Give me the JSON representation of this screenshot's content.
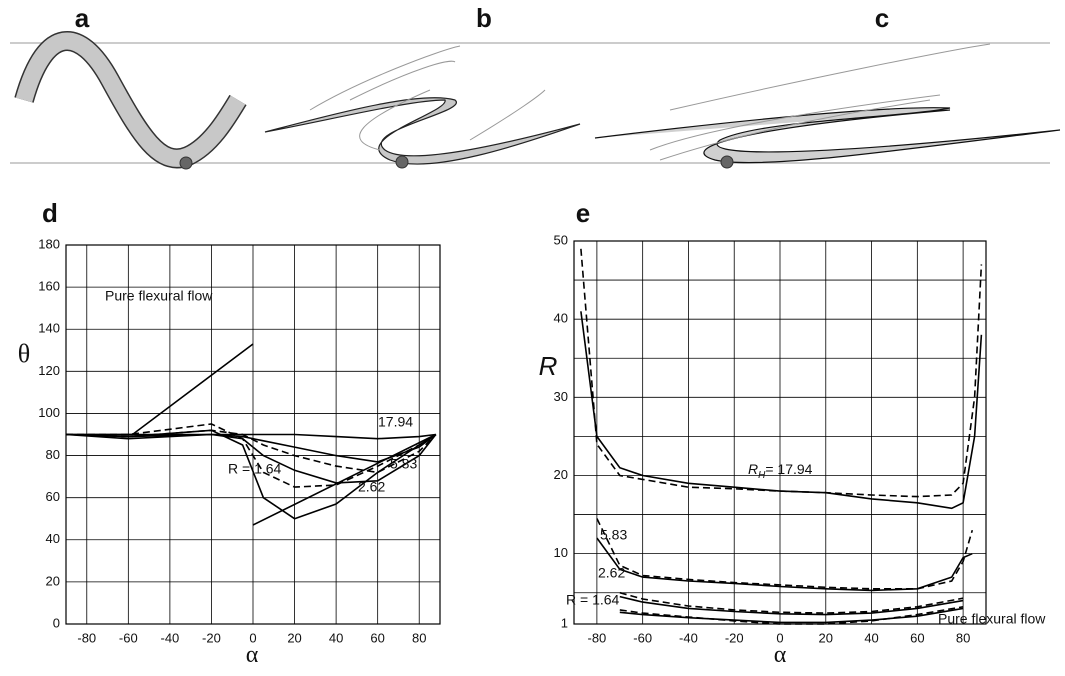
{
  "panels": [
    "a",
    "b",
    "c"
  ],
  "chart_data": [
    {
      "type": "line",
      "panel_label": "d",
      "xlabel": "α",
      "ylabel": "θ",
      "xlim": [
        -90,
        90
      ],
      "xticks": [
        -80,
        -60,
        -40,
        -20,
        0,
        20,
        40,
        60,
        80
      ],
      "ylim": [
        0,
        180
      ],
      "yticks": [
        0,
        20,
        40,
        60,
        80,
        100,
        120,
        140,
        160,
        180
      ],
      "grid": true,
      "annotations": [
        "Pure flexural flow",
        "R = 1.64",
        "2.62",
        "5.83",
        "17.94"
      ],
      "series": [
        {
          "color": "#000000",
          "dash": "solid",
          "x": [
            -90,
            -58,
            0,
            0,
            0,
            88
          ],
          "values": [
            90,
            90,
            133,
            null,
            47,
            90
          ]
        },
        {
          "color": "#000000",
          "dash": "solid",
          "x": [
            -90,
            -60,
            -20,
            -5,
            5,
            20,
            40,
            60,
            80,
            88
          ],
          "values": [
            90,
            89,
            92,
            85,
            60,
            50,
            57,
            72,
            85,
            90
          ]
        },
        {
          "color": "#000000",
          "dash": "dashed",
          "x": [
            -90,
            -60,
            -20,
            -5,
            5,
            20,
            40,
            60,
            80,
            88
          ],
          "values": [
            90,
            90,
            95,
            88,
            72,
            65,
            66,
            75,
            85,
            90
          ]
        },
        {
          "color": "#000000",
          "dash": "solid",
          "x": [
            -90,
            -60,
            -20,
            -5,
            5,
            20,
            40,
            60,
            80,
            88
          ],
          "values": [
            90,
            88,
            90,
            88,
            80,
            73,
            67,
            68,
            80,
            90
          ]
        },
        {
          "color": "#000000",
          "dash": "dashed",
          "x": [
            -90,
            -60,
            -20,
            -5,
            5,
            20,
            40,
            60,
            80,
            88
          ],
          "values": [
            90,
            89,
            92,
            90,
            85,
            80,
            75,
            72,
            82,
            90
          ]
        },
        {
          "color": "#000000",
          "dash": "solid",
          "x": [
            -90,
            -60,
            -20,
            -5,
            5,
            20,
            40,
            60,
            80,
            88
          ],
          "values": [
            90,
            89,
            90,
            89,
            87,
            84,
            80,
            77,
            84,
            90
          ]
        },
        {
          "color": "#000000",
          "dash": "solid",
          "x": [
            -90,
            -60,
            -20,
            -5,
            5,
            20,
            40,
            60,
            80,
            88
          ],
          "values": [
            90,
            90,
            90,
            90,
            90,
            90,
            89,
            88,
            89,
            90
          ]
        }
      ]
    },
    {
      "type": "line",
      "panel_label": "e",
      "xlabel": "α",
      "ylabel": "R",
      "xlim": [
        -90,
        90
      ],
      "xticks": [
        -80,
        -60,
        -40,
        -20,
        0,
        20,
        40,
        60,
        80
      ],
      "ylim": [
        1,
        50
      ],
      "yticks": [
        1,
        10,
        20,
        30,
        40,
        50
      ],
      "minor_yticks": [
        5,
        15,
        25,
        35,
        45
      ],
      "grid": true,
      "annotations": [
        "5.83",
        "2.62",
        "R = 1.64",
        "Pure flexural flow"
      ],
      "rh_label": {
        "symbol": "R",
        "subscript": "H",
        "text": "= 17.94"
      },
      "series": [
        {
          "color": "#000000",
          "dash": "solid",
          "x": [
            -87,
            -80,
            -70,
            -60,
            -40,
            -20,
            0,
            20,
            40,
            60,
            75,
            80,
            85,
            88
          ],
          "values": [
            41,
            25,
            21,
            20,
            19,
            18.5,
            18,
            17.8,
            17,
            16.5,
            15.8,
            16.5,
            25,
            38
          ]
        },
        {
          "color": "#000000",
          "dash": "dashed",
          "x": [
            -87,
            -80,
            -70,
            -60,
            -40,
            -20,
            0,
            20,
            40,
            60,
            75,
            80,
            85,
            88
          ],
          "values": [
            49,
            24,
            20,
            19.5,
            18.5,
            18.3,
            18,
            17.8,
            17.5,
            17.3,
            17.5,
            19,
            30,
            47
          ]
        },
        {
          "color": "#000000",
          "dash": "solid",
          "x": [
            -80,
            -70,
            -60,
            -40,
            -20,
            0,
            20,
            40,
            60,
            75,
            80,
            84
          ],
          "values": [
            12,
            8,
            7,
            6.5,
            6.2,
            5.8,
            5.5,
            5.3,
            5.5,
            7,
            9.5,
            10
          ]
        },
        {
          "color": "#000000",
          "dash": "dashed",
          "x": [
            -80,
            -70,
            -60,
            -40,
            -20,
            0,
            20,
            40,
            60,
            75,
            80,
            84
          ],
          "values": [
            14.5,
            8.5,
            7.2,
            6.7,
            6.3,
            6,
            5.7,
            5.5,
            5.5,
            6.5,
            9,
            13
          ]
        },
        {
          "color": "#000000",
          "dash": "solid",
          "x": [
            -70,
            -60,
            -40,
            -20,
            0,
            20,
            40,
            60,
            80
          ],
          "values": [
            4.5,
            3.8,
            3,
            2.6,
            2.3,
            2.2,
            2.4,
            3,
            4
          ]
        },
        {
          "color": "#000000",
          "dash": "dashed",
          "x": [
            -70,
            -60,
            -40,
            -20,
            0,
            20,
            40,
            60,
            80
          ],
          "values": [
            5,
            4.2,
            3.3,
            2.8,
            2.5,
            2.4,
            2.6,
            3.2,
            4.3
          ]
        },
        {
          "color": "#000000",
          "dash": "solid",
          "x": [
            -70,
            -60,
            -40,
            -20,
            0,
            20,
            40,
            60,
            80
          ],
          "values": [
            2.5,
            2.2,
            1.8,
            1.5,
            1.2,
            1.2,
            1.5,
            2,
            3
          ]
        },
        {
          "color": "#000000",
          "dash": "dashed",
          "x": [
            -70,
            -60,
            -40,
            -20,
            0,
            20,
            40,
            60,
            80
          ],
          "values": [
            2.8,
            2.4,
            1.9,
            1.4,
            1,
            1,
            1.4,
            2.2,
            3.2
          ]
        }
      ]
    }
  ]
}
